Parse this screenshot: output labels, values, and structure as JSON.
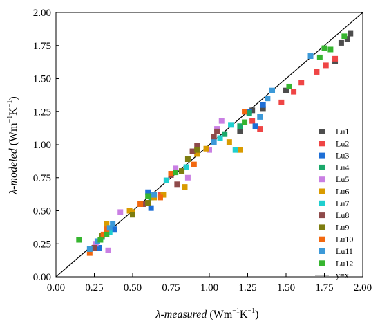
{
  "chart_data": {
    "type": "scatter",
    "xlabel": {
      "symbol": "λ-measured",
      "unit_open": " (Wm",
      "exp1": "−1",
      "unit_mid": "K",
      "exp2": "−1",
      "unit_close": ")"
    },
    "ylabel": {
      "symbol": "λ-modeled",
      "unit_open": " (Wm",
      "exp1": "−1",
      "unit_mid": "K",
      "exp2": "−1",
      "unit_close": ")"
    },
    "xlim": [
      0,
      2
    ],
    "ylim": [
      0,
      2
    ],
    "x_ticks": [
      "0.00",
      "0.25",
      "0.50",
      "0.75",
      "1.00",
      "1.25",
      "1.50",
      "1.75",
      "2.00"
    ],
    "y_ticks": [
      "0.00",
      "0.25",
      "0.50",
      "0.75",
      "1.00",
      "1.25",
      "1.50",
      "1.75",
      "2.00"
    ],
    "grid": false,
    "legend_position": "bottom-right",
    "reference_line": {
      "name": "y=x",
      "color": "#000000"
    },
    "series": [
      {
        "name": "Lu1",
        "color": "#4d4d4d",
        "points": [
          [
            1.92,
            1.84
          ],
          [
            1.86,
            1.77
          ],
          [
            1.9,
            1.8
          ],
          [
            1.82,
            1.63
          ],
          [
            1.5,
            1.41
          ],
          [
            1.35,
            1.27
          ],
          [
            1.28,
            1.26
          ],
          [
            1.25,
            1.25
          ],
          [
            1.2,
            1.1
          ]
        ]
      },
      {
        "name": "Lu2",
        "color": "#ef4545",
        "points": [
          [
            1.82,
            1.65
          ],
          [
            1.76,
            1.6
          ],
          [
            1.7,
            1.55
          ],
          [
            1.6,
            1.47
          ],
          [
            1.55,
            1.4
          ],
          [
            1.47,
            1.32
          ],
          [
            1.33,
            1.12
          ],
          [
            1.28,
            1.18
          ],
          [
            0.68,
            0.62
          ]
        ]
      },
      {
        "name": "Lu3",
        "color": "#1e6fd6",
        "points": [
          [
            1.35,
            1.3
          ],
          [
            1.3,
            1.14
          ],
          [
            1.26,
            1.25
          ],
          [
            0.6,
            0.64
          ],
          [
            0.62,
            0.52
          ],
          [
            0.38,
            0.36
          ],
          [
            0.28,
            0.22
          ]
        ]
      },
      {
        "name": "Lu4",
        "color": "#1aa86a",
        "points": [
          [
            1.26,
            1.24
          ],
          [
            1.2,
            1.14
          ],
          [
            1.1,
            1.08
          ],
          [
            0.82,
            0.8
          ],
          [
            0.62,
            0.6
          ]
        ]
      },
      {
        "name": "Lu5",
        "color": "#c97fe3",
        "points": [
          [
            1.08,
            1.18
          ],
          [
            1.05,
            1.12
          ],
          [
            1.0,
            0.96
          ],
          [
            0.86,
            0.75
          ],
          [
            0.78,
            0.82
          ],
          [
            0.42,
            0.49
          ],
          [
            0.34,
            0.2
          ],
          [
            0.26,
            0.25
          ]
        ]
      },
      {
        "name": "Lu6",
        "color": "#d99b00",
        "points": [
          [
            1.2,
            0.96
          ],
          [
            1.13,
            1.02
          ],
          [
            0.98,
            0.97
          ],
          [
            0.92,
            0.93
          ],
          [
            0.84,
            0.68
          ],
          [
            0.7,
            0.62
          ],
          [
            0.64,
            0.6
          ],
          [
            0.5,
            0.49
          ],
          [
            0.48,
            0.5
          ],
          [
            0.33,
            0.4
          ]
        ]
      },
      {
        "name": "Lu7",
        "color": "#1fcfcf",
        "points": [
          [
            1.17,
            0.96
          ],
          [
            1.14,
            1.15
          ],
          [
            1.07,
            1.05
          ],
          [
            0.85,
            0.83
          ],
          [
            0.72,
            0.73
          ],
          [
            0.35,
            0.34
          ],
          [
            0.3,
            0.3
          ]
        ]
      },
      {
        "name": "Lu8",
        "color": "#8e4a4a",
        "points": [
          [
            1.05,
            1.1
          ],
          [
            1.03,
            1.06
          ],
          [
            0.92,
            0.99
          ],
          [
            0.89,
            0.95
          ],
          [
            0.79,
            0.7
          ],
          [
            0.75,
            0.77
          ],
          [
            0.57,
            0.55
          ],
          [
            0.25,
            0.22
          ]
        ]
      },
      {
        "name": "Lu9",
        "color": "#7d7d10",
        "points": [
          [
            0.92,
            0.96
          ],
          [
            0.86,
            0.89
          ],
          [
            0.82,
            0.8
          ],
          [
            0.6,
            0.56
          ],
          [
            0.5,
            0.47
          ],
          [
            0.3,
            0.31
          ]
        ]
      },
      {
        "name": "Lu10",
        "color": "#f2680f",
        "points": [
          [
            1.23,
            1.25
          ],
          [
            0.9,
            0.85
          ],
          [
            0.75,
            0.78
          ],
          [
            0.68,
            0.6
          ],
          [
            0.55,
            0.55
          ],
          [
            0.33,
            0.36
          ],
          [
            0.31,
            0.32
          ],
          [
            0.22,
            0.18
          ]
        ]
      },
      {
        "name": "Lu11",
        "color": "#3c99d8",
        "points": [
          [
            1.66,
            1.67
          ],
          [
            1.41,
            1.41
          ],
          [
            1.38,
            1.35
          ],
          [
            1.33,
            1.21
          ],
          [
            1.03,
            1.02
          ],
          [
            0.64,
            0.62
          ],
          [
            0.37,
            0.4
          ],
          [
            0.35,
            0.37
          ],
          [
            0.27,
            0.27
          ],
          [
            0.22,
            0.21
          ]
        ]
      },
      {
        "name": "Lu12",
        "color": "#36b52f",
        "points": [
          [
            1.88,
            1.82
          ],
          [
            1.79,
            1.72
          ],
          [
            1.75,
            1.73
          ],
          [
            1.72,
            1.66
          ],
          [
            1.52,
            1.44
          ],
          [
            1.23,
            1.17
          ],
          [
            0.78,
            0.79
          ],
          [
            0.6,
            0.61
          ],
          [
            0.33,
            0.32
          ],
          [
            0.29,
            0.28
          ],
          [
            0.15,
            0.28
          ]
        ]
      }
    ]
  }
}
